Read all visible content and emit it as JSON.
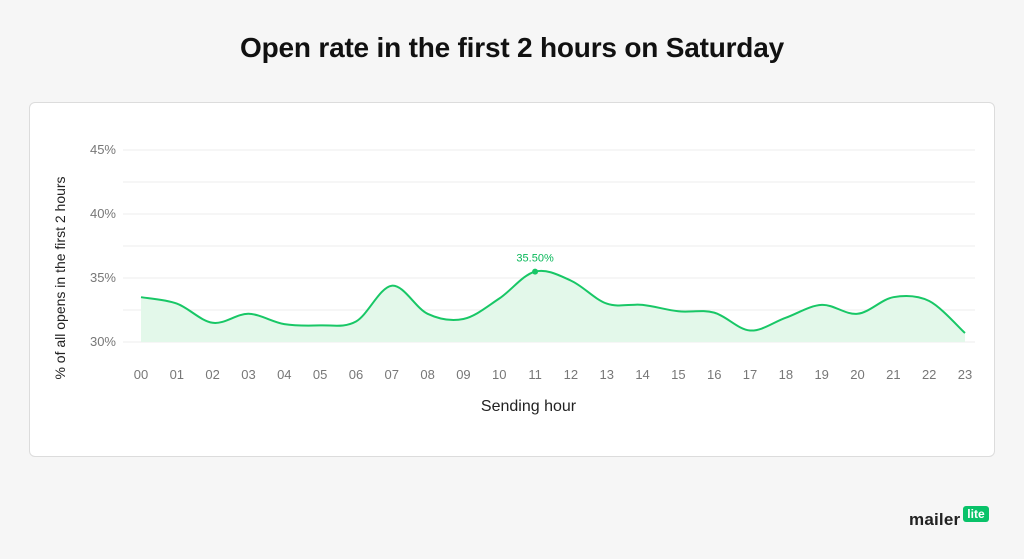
{
  "chart_data": {
    "type": "line",
    "title": "Open rate in the first 2 hours on Saturday",
    "xlabel": "Sending hour",
    "ylabel": "% of all opens in the first 2 hours",
    "categories": [
      "00",
      "01",
      "02",
      "03",
      "04",
      "05",
      "06",
      "07",
      "08",
      "09",
      "10",
      "11",
      "12",
      "13",
      "14",
      "15",
      "16",
      "17",
      "18",
      "19",
      "20",
      "21",
      "22",
      "23"
    ],
    "yticks": [
      "45%",
      "40%",
      "35%",
      "30%"
    ],
    "ylim": [
      30,
      45
    ],
    "grid": true,
    "area_fill": true,
    "series": [
      {
        "values": [
          33.5,
          33.0,
          31.5,
          32.2,
          31.4,
          31.3,
          31.6,
          34.4,
          32.2,
          31.8,
          33.4,
          35.5,
          34.8,
          33.0,
          32.9,
          32.4,
          32.3,
          30.9,
          31.9,
          32.9,
          32.2,
          33.5,
          33.2,
          30.7
        ]
      }
    ],
    "annotation": {
      "index": 11,
      "text": "35.50%"
    },
    "colors": {
      "line": "#18c766",
      "fill": "#e3f8ea",
      "grid": "#ececec",
      "label": "#09b85a"
    }
  },
  "branding": {
    "word": "mailer",
    "badge": "lite"
  }
}
